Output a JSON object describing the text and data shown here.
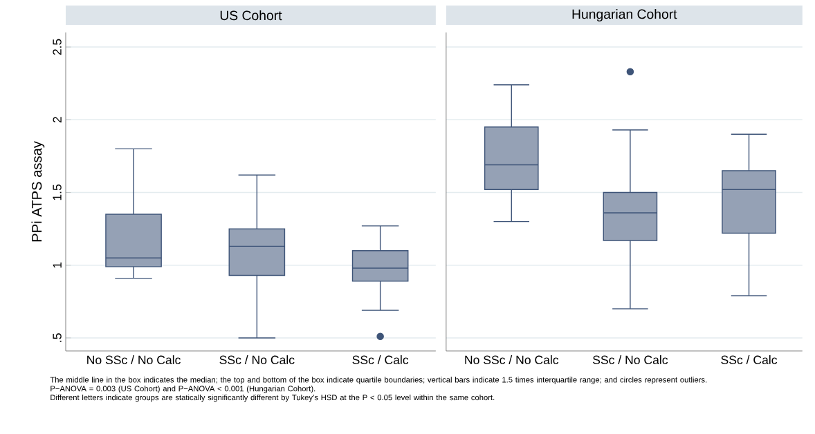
{
  "chart_data": [
    {
      "type": "box",
      "title": "US Cohort",
      "ylabel": "PPi ATPS assay",
      "categories": [
        "No SSc / No Calc",
        "SSc / No Calc",
        "SSc / Calc"
      ],
      "color": "#3e5478",
      "grid": "y",
      "ylim": [
        0.41,
        2.6
      ],
      "yticks": [
        {
          "value": 0.5,
          "label": ".5"
        },
        1,
        1.5,
        2,
        2.5
      ],
      "boxes": [
        {
          "low": 0.91,
          "q1": 0.99,
          "median": 1.05,
          "q3": 1.35,
          "high": 1.8
        },
        {
          "low": 0.5,
          "q1": 0.93,
          "median": 1.13,
          "q3": 1.25,
          "high": 1.62
        },
        {
          "low": 0.69,
          "q1": 0.89,
          "median": 0.98,
          "q3": 1.1,
          "high": 1.27,
          "outliers": [
            0.51
          ]
        }
      ],
      "annotations": [
        "The middle line in the box indicates the median; the top and bottom of the box indicate quartile boundaries; vertical bars indicate 1.5 times interquartile range; and circles represent outliers.",
        "P−ANOVA = 0.003 (US Cohort) and P−ANOVA < 0.001 (Hungarian Cohort).",
        "Different letters indicate groups are statically significantly different by Tukey’s HSD at the P < 0.05 level within the same cohort."
      ]
    },
    {
      "type": "box",
      "title": "Hungarian Cohort",
      "categories": [
        "No SSc / No Calc",
        "SSc / No Calc",
        "SSc / Calc"
      ],
      "color": "#3e5478",
      "grid": "y",
      "ylim": [
        0.41,
        2.6
      ],
      "yticks": [
        0.5,
        1,
        1.5,
        2,
        2.5
      ],
      "tick_labels": "x",
      "boxes": [
        {
          "low": 1.3,
          "q1": 1.52,
          "median": 1.69,
          "q3": 1.95,
          "high": 2.24
        },
        {
          "low": 0.7,
          "q1": 1.17,
          "median": 1.36,
          "q3": 1.5,
          "high": 1.93,
          "outliers": [
            2.33
          ]
        },
        {
          "low": 0.79,
          "q1": 1.22,
          "median": 1.52,
          "q3": 1.65,
          "high": 1.9
        }
      ]
    }
  ]
}
